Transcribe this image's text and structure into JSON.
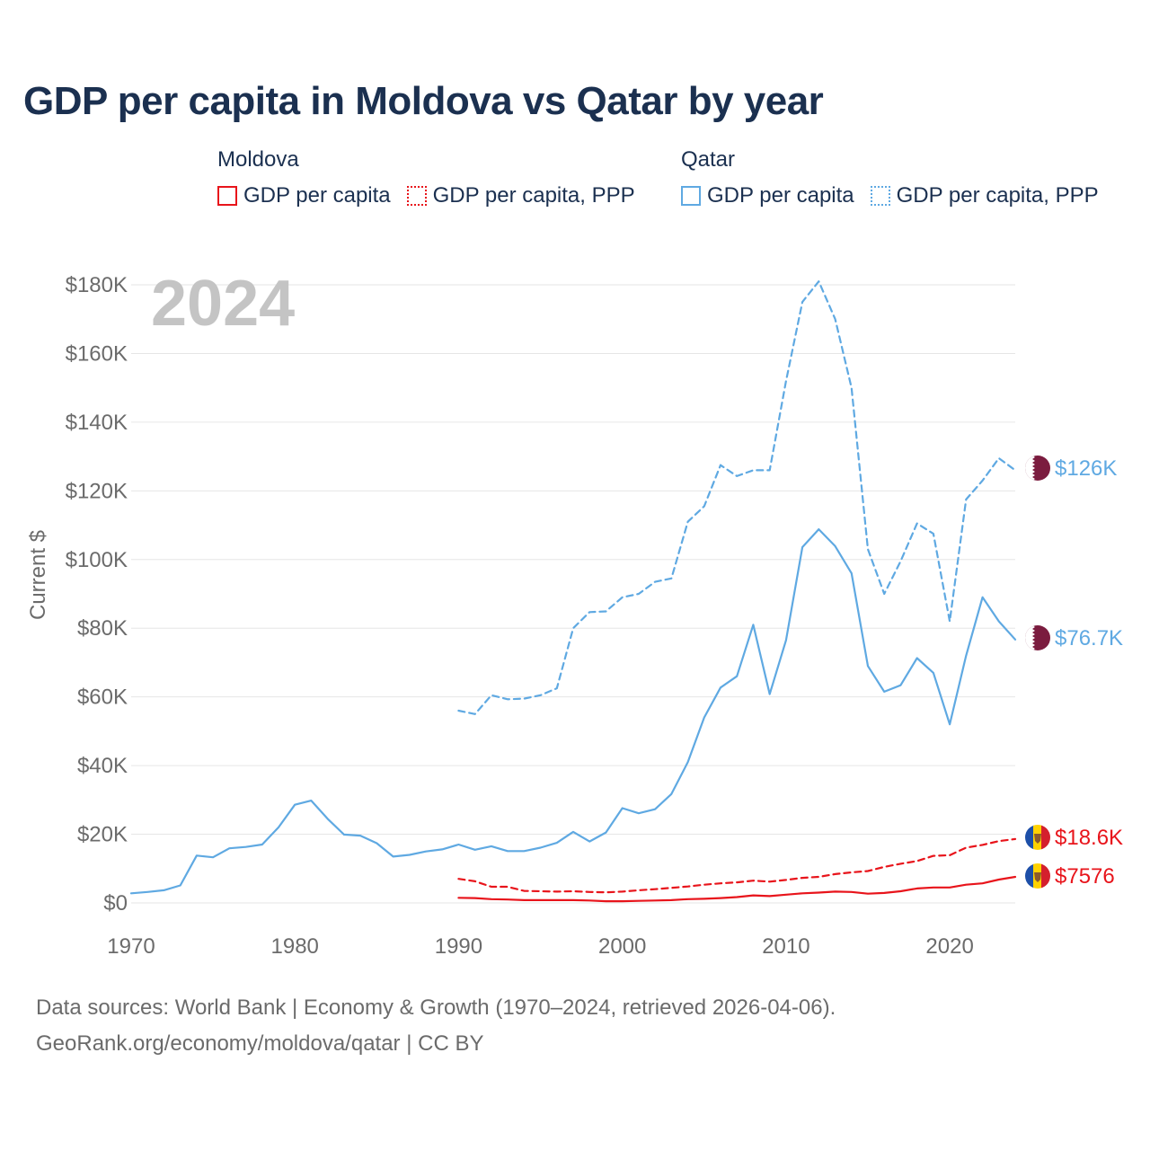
{
  "title": "GDP per capita in Moldova vs Qatar by year",
  "legend": {
    "groups": [
      {
        "country": "Moldova",
        "color": "#e8141b",
        "items": [
          {
            "label": "GDP per capita",
            "style": "solid"
          },
          {
            "label": "GDP per capita, PPP",
            "style": "dotted"
          }
        ]
      },
      {
        "country": "Qatar",
        "color": "#5fa9e2",
        "items": [
          {
            "label": "GDP per capita",
            "style": "solid"
          },
          {
            "label": "GDP per capita, PPP",
            "style": "dotted"
          }
        ]
      }
    ]
  },
  "year_watermark": "2024",
  "end_labels": {
    "qatar_ppp": "$126K",
    "qatar_gdp": "$76.7K",
    "moldova_ppp": "$18.6K",
    "moldova_gdp": "$7576"
  },
  "footer": {
    "line1": "Data sources: World Bank | Economy & Growth (1970–2024, retrieved 2026-04-06).",
    "line2": "GeoRank.org/economy/moldova/qatar | CC BY"
  },
  "chart_data": {
    "type": "line",
    "title": "GDP per capita in Moldova vs Qatar by year",
    "xlabel": "",
    "ylabel": "Current $",
    "xlim": [
      1970,
      2024
    ],
    "ylim": [
      0,
      180000
    ],
    "x_ticks": [
      1970,
      1980,
      1990,
      2000,
      2010,
      2020
    ],
    "y_ticks": [
      0,
      20000,
      40000,
      60000,
      80000,
      100000,
      120000,
      140000,
      160000,
      180000
    ],
    "y_tick_labels": [
      "$0",
      "$20K",
      "$40K",
      "$60K",
      "$80K",
      "$100K",
      "$120K",
      "$140K",
      "$160K",
      "$180K"
    ],
    "grid": true,
    "series": [
      {
        "name": "Qatar GDP per capita, PPP",
        "country": "Qatar",
        "color": "#5fa9e2",
        "dash": true,
        "x": [
          1990,
          1991,
          1992,
          1993,
          1994,
          1995,
          1996,
          1997,
          1998,
          1999,
          2000,
          2001,
          2002,
          2003,
          2004,
          2005,
          2006,
          2007,
          2008,
          2009,
          2010,
          2011,
          2012,
          2013,
          2014,
          2015,
          2016,
          2017,
          2018,
          2019,
          2020,
          2021,
          2022,
          2023,
          2024
        ],
        "values": [
          56000,
          55000,
          60500,
          59300,
          59500,
          60500,
          62500,
          80000,
          84700,
          84900,
          89000,
          90000,
          93500,
          94500,
          111000,
          115500,
          127500,
          124300,
          126000,
          126000,
          152000,
          175000,
          181000,
          170000,
          150000,
          103000,
          90000,
          99500,
          110500,
          107500,
          82000,
          117500,
          123000,
          129500,
          126000
        ]
      },
      {
        "name": "Qatar GDP per capita",
        "country": "Qatar",
        "color": "#5fa9e2",
        "dash": false,
        "x": [
          1970,
          1971,
          1972,
          1973,
          1974,
          1975,
          1976,
          1977,
          1978,
          1979,
          1980,
          1981,
          1982,
          1983,
          1984,
          1985,
          1986,
          1987,
          1988,
          1989,
          1990,
          1991,
          1992,
          1993,
          1994,
          1995,
          1996,
          1997,
          1998,
          1999,
          2000,
          2001,
          2002,
          2003,
          2004,
          2005,
          2006,
          2007,
          2008,
          2009,
          2010,
          2011,
          2012,
          2013,
          2014,
          2015,
          2016,
          2017,
          2018,
          2019,
          2020,
          2021,
          2022,
          2023,
          2024
        ],
        "values": [
          2800,
          3200,
          3700,
          5100,
          13800,
          13300,
          15900,
          16300,
          17000,
          22000,
          28600,
          29800,
          24500,
          19900,
          19600,
          17400,
          13500,
          14000,
          15000,
          15600,
          17000,
          15500,
          16500,
          15100,
          15100,
          16100,
          17500,
          20700,
          17900,
          20500,
          27600,
          26100,
          27300,
          31700,
          41000,
          54000,
          62700,
          66000,
          81000,
          60800,
          76500,
          103600,
          108800,
          103900,
          96000,
          69000,
          61500,
          63400,
          71300,
          67000,
          52000,
          72000,
          89000,
          82000,
          76700
        ]
      },
      {
        "name": "Moldova GDP per capita, PPP",
        "country": "Moldova",
        "color": "#e8141b",
        "dash": true,
        "x": [
          1990,
          1991,
          1992,
          1993,
          1994,
          1995,
          1996,
          1997,
          1998,
          1999,
          2000,
          2001,
          2002,
          2003,
          2004,
          2005,
          2006,
          2007,
          2008,
          2009,
          2010,
          2011,
          2012,
          2013,
          2014,
          2015,
          2016,
          2017,
          2018,
          2019,
          2020,
          2021,
          2022,
          2023,
          2024
        ],
        "values": [
          7000,
          6300,
          4700,
          4700,
          3500,
          3400,
          3300,
          3400,
          3200,
          3100,
          3300,
          3700,
          4000,
          4400,
          4800,
          5300,
          5700,
          6000,
          6500,
          6200,
          6700,
          7300,
          7600,
          8400,
          8900,
          9300,
          10500,
          11400,
          12200,
          13700,
          13900,
          16100,
          16900,
          18000,
          18600
        ]
      },
      {
        "name": "Moldova GDP per capita",
        "country": "Moldova",
        "color": "#e8141b",
        "dash": false,
        "x": [
          1990,
          1991,
          1992,
          1993,
          1994,
          1995,
          1996,
          1997,
          1998,
          1999,
          2000,
          2001,
          2002,
          2003,
          2004,
          2005,
          2006,
          2007,
          2008,
          2009,
          2010,
          2011,
          2012,
          2013,
          2014,
          2015,
          2016,
          2017,
          2018,
          2019,
          2020,
          2021,
          2022,
          2023,
          2024
        ],
        "values": [
          1500,
          1400,
          1100,
          1000,
          800,
          800,
          800,
          800,
          700,
          500,
          500,
          600,
          700,
          800,
          1100,
          1200,
          1400,
          1700,
          2200,
          2000,
          2400,
          2800,
          3000,
          3300,
          3200,
          2700,
          2900,
          3400,
          4200,
          4500,
          4500,
          5300,
          5700,
          6800,
          7576
        ]
      }
    ]
  }
}
